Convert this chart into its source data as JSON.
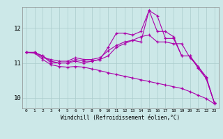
{
  "xlabel": "Windchill (Refroidissement éolien,°C)",
  "ylabel": "",
  "background_color": "#cce8e8",
  "line_color": "#aa00aa",
  "grid_color": "#aacccc",
  "xlim": [
    -0.5,
    23.5
  ],
  "ylim": [
    9.7,
    12.6
  ],
  "yticks": [
    10,
    11,
    12
  ],
  "xticks": [
    0,
    1,
    2,
    3,
    4,
    5,
    6,
    7,
    8,
    9,
    10,
    11,
    12,
    13,
    14,
    15,
    16,
    17,
    18,
    19,
    20,
    21,
    22,
    23
  ],
  "lines": [
    {
      "x": [
        0,
        1,
        2,
        3,
        4,
        5,
        6,
        7,
        8,
        9,
        10,
        11,
        12,
        13,
        14,
        15,
        16,
        17,
        18,
        19,
        20,
        21,
        22,
        23
      ],
      "y": [
        11.3,
        11.3,
        11.2,
        11.05,
        11.0,
        11.0,
        11.1,
        11.05,
        11.05,
        11.1,
        11.2,
        11.45,
        11.55,
        11.65,
        11.6,
        12.5,
        11.9,
        11.9,
        11.75,
        11.2,
        11.2,
        10.85,
        10.55,
        9.85
      ]
    },
    {
      "x": [
        0,
        1,
        2,
        3,
        4,
        5,
        6,
        7,
        8,
        9,
        10,
        11,
        12,
        13,
        14,
        15,
        16,
        17,
        18,
        19,
        20,
        21,
        22,
        23
      ],
      "y": [
        11.3,
        11.3,
        11.15,
        11.1,
        11.05,
        11.05,
        11.15,
        11.1,
        11.1,
        11.15,
        11.35,
        11.5,
        11.6,
        11.65,
        11.75,
        11.8,
        11.6,
        11.6,
        11.55,
        11.55,
        11.15,
        10.9,
        10.6,
        9.85
      ]
    },
    {
      "x": [
        0,
        1,
        2,
        3,
        4,
        5,
        6,
        7,
        8,
        9,
        10,
        11,
        12,
        13,
        14,
        15,
        16,
        17,
        18,
        19,
        20,
        21,
        22,
        23
      ],
      "y": [
        11.3,
        11.3,
        11.2,
        11.0,
        11.0,
        11.0,
        11.05,
        11.0,
        11.05,
        11.1,
        11.45,
        11.85,
        11.85,
        11.8,
        11.9,
        12.5,
        12.35,
        11.7,
        11.7,
        11.2,
        11.2,
        10.9,
        10.55,
        9.85
      ]
    },
    {
      "x": [
        0,
        1,
        2,
        3,
        4,
        5,
        6,
        7,
        8,
        9,
        10,
        11,
        12,
        13,
        14,
        15,
        16,
        17,
        18,
        19,
        20,
        21,
        22,
        23
      ],
      "y": [
        11.3,
        11.28,
        11.1,
        10.95,
        10.9,
        10.88,
        10.9,
        10.88,
        10.83,
        10.78,
        10.72,
        10.67,
        10.62,
        10.57,
        10.52,
        10.47,
        10.42,
        10.37,
        10.32,
        10.27,
        10.18,
        10.08,
        9.98,
        9.83
      ]
    }
  ]
}
